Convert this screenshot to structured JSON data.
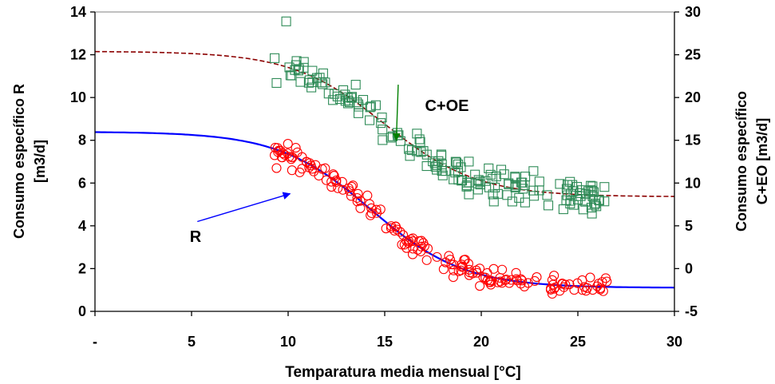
{
  "chart_data": {
    "type": "scatter",
    "title": "",
    "xlabel": "Temparatura media  mensual [°C]",
    "ylabel_left_lines": [
      "Consumo específico R",
      "[m3/d]"
    ],
    "ylabel_right_lines": [
      "Consumo específico",
      "C+EO  [m3/d]"
    ],
    "xlim": [
      0,
      30
    ],
    "ylim_left": [
      0,
      14
    ],
    "ylim_right": [
      -5,
      30
    ],
    "x_ticks": [
      {
        "value": 0,
        "label": "-"
      },
      {
        "value": 5,
        "label": "5"
      },
      {
        "value": 10,
        "label": "10"
      },
      {
        "value": 15,
        "label": "15"
      },
      {
        "value": 20,
        "label": "20"
      },
      {
        "value": 25,
        "label": "25"
      },
      {
        "value": 30,
        "label": "30"
      }
    ],
    "y_ticks_left": [
      "0",
      "2",
      "4",
      "6",
      "8",
      "10",
      "12",
      "14"
    ],
    "y_ticks_right": [
      "-5",
      "0",
      "5",
      "10",
      "15",
      "20",
      "25",
      "30"
    ],
    "grid": false,
    "legend": "none",
    "annotations": [
      {
        "text": "C+OE",
        "color": "#008000",
        "arrow_from": [
          15.7,
          10.6
        ],
        "arrow_to": [
          15.6,
          8.0
        ]
      },
      {
        "text": "R",
        "color": "#0000ff",
        "arrow_from": [
          5.3,
          4.2
        ],
        "arrow_to": [
          10.1,
          5.5
        ]
      }
    ],
    "series": [
      {
        "axis": "left",
        "marker": "circle",
        "color": "#ff0000",
        "generator": {
          "kind": "logistic",
          "top": 8.4,
          "bottom": 1.1,
          "mid": 14.3,
          "width": 2.4,
          "x_start": 9.2,
          "x_end": 26.6,
          "count": 170,
          "seed": 7,
          "noise": 0.35
        },
        "points": [
          [
            9.3,
            7.3
          ],
          [
            9.4,
            6.7
          ],
          [
            10.6,
            6.5
          ],
          [
            10.2,
            6.6
          ],
          [
            16.9,
            3.3
          ],
          [
            17.0,
            3.2
          ],
          [
            21.8,
            1.8
          ]
        ]
      },
      {
        "axis": "right",
        "marker": "square",
        "color": "#2e8b57",
        "generator": {
          "kind": "logistic",
          "top": 25.4,
          "bottom": 8.4,
          "mid": 15.0,
          "width": 2.4,
          "x_start": 9.6,
          "x_end": 26.4,
          "count": 170,
          "seed": 13,
          "noise": 1.3
        },
        "points": [
          [
            9.9,
            28.9
          ],
          [
            9.3,
            24.6
          ],
          [
            9.4,
            21.7
          ],
          [
            13.5,
            21.5
          ],
          [
            22.7,
            11.4
          ],
          [
            24.4,
            8.0
          ],
          [
            24.6,
            7.6
          ]
        ]
      },
      {
        "axis": "left",
        "kind": "line",
        "color": "#0000ff",
        "style": "solid",
        "curve": {
          "top": 8.4,
          "bottom": 1.1,
          "mid": 14.3,
          "width": 2.4
        }
      },
      {
        "axis": "right",
        "kind": "line",
        "color": "#8b0000",
        "style": "dashed",
        "curve": {
          "top": 25.4,
          "bottom": 8.4,
          "mid": 15.0,
          "width": 2.4
        }
      }
    ]
  }
}
